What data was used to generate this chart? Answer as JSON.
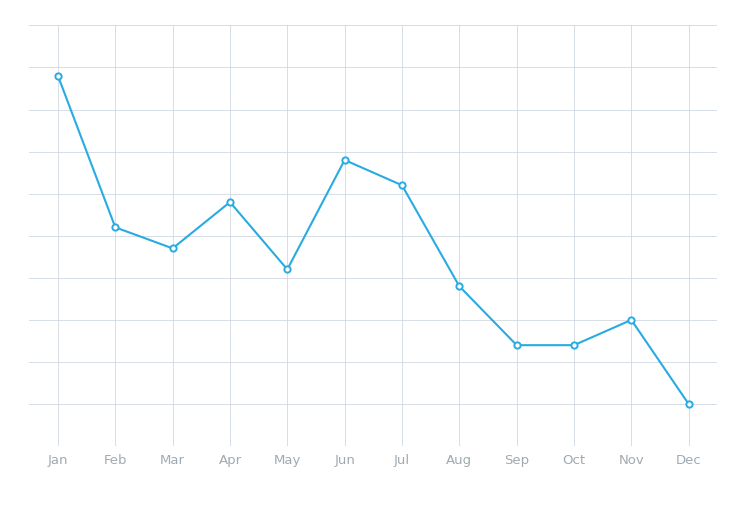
{
  "months": [
    "Jan",
    "Feb",
    "Mar",
    "Apr",
    "May",
    "Jun",
    "Jul",
    "Aug",
    "Sep",
    "Oct",
    "Nov",
    "Dec"
  ],
  "values": [
    88,
    52,
    47,
    58,
    42,
    68,
    62,
    38,
    24,
    24,
    30,
    10
  ],
  "line_color": "#29ABE2",
  "marker_color": "#29ABE2",
  "marker_face": "#ffffff",
  "background_color": "#ffffff",
  "grid_color": "#d0d8e0",
  "tick_color": "#a0aab0",
  "ylim": [
    0,
    100
  ],
  "xlim": [
    -0.5,
    11.5
  ],
  "yticks": [
    0,
    10,
    20,
    30,
    40,
    50,
    60,
    70,
    80,
    90,
    100
  ]
}
